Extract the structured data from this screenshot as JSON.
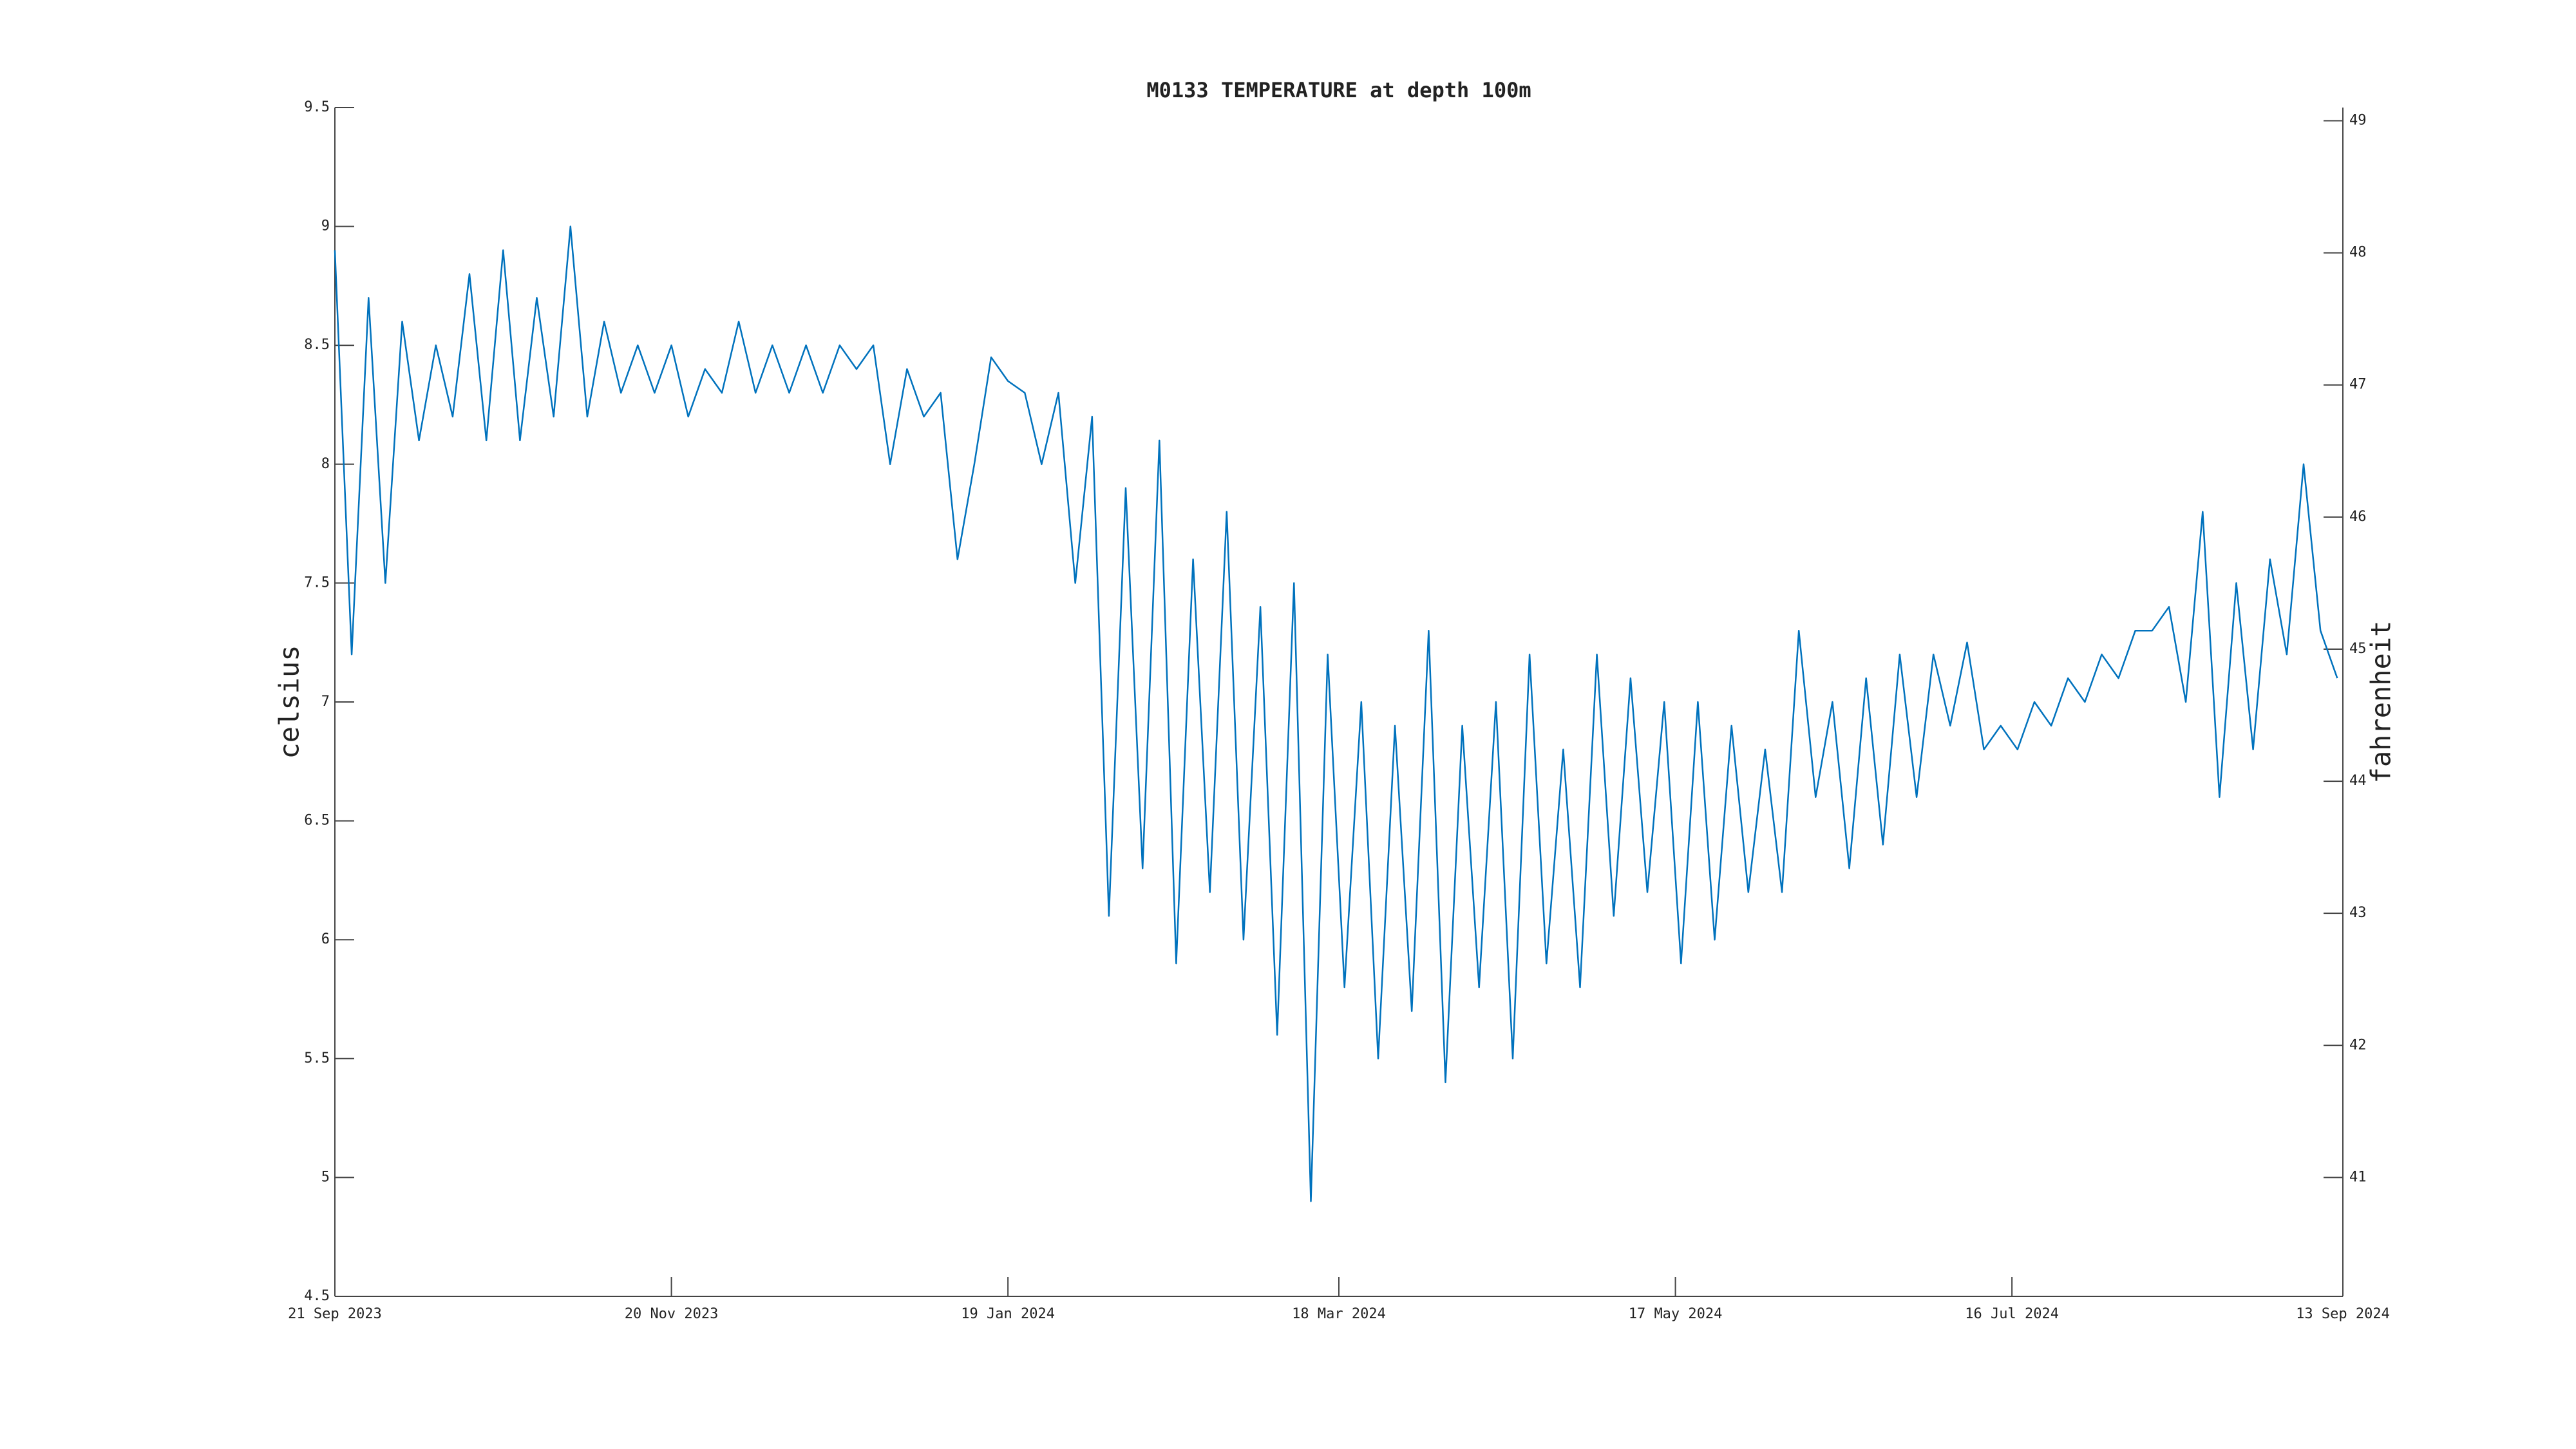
{
  "chart_data": {
    "type": "line",
    "title": "M0133 TEMPERATURE at depth 100m",
    "ylabel": "celsius",
    "y2label": "fahrenheit",
    "xlim": [
      "2023-09-21",
      "2024-09-13"
    ],
    "xticks": [
      {
        "value": "2023-09-21",
        "label": "21 Sep 2023"
      },
      {
        "value": "2023-11-20",
        "label": "20 Nov 2023"
      },
      {
        "value": "2024-01-19",
        "label": "19 Jan 2024"
      },
      {
        "value": "2024-03-18",
        "label": "18 Mar 2024"
      },
      {
        "value": "2024-05-17",
        "label": "17 May 2024"
      },
      {
        "value": "2024-07-16",
        "label": "16 Jul 2024"
      },
      {
        "value": "2024-09-13",
        "label": "13 Sep 2024"
      }
    ],
    "ylim": [
      4.5,
      9.5
    ],
    "yticks": [
      4.5,
      5,
      5.5,
      6,
      6.5,
      7,
      7.5,
      8,
      8.5,
      9,
      9.5
    ],
    "y2lim": [
      40.1,
      49.1
    ],
    "y2ticks": [
      41,
      42,
      43,
      44,
      45,
      46,
      47,
      48,
      49
    ],
    "grid": false,
    "x": [
      "2023-09-21",
      "2023-09-24",
      "2023-09-27",
      "2023-09-30",
      "2023-10-03",
      "2023-10-06",
      "2023-10-09",
      "2023-10-12",
      "2023-10-15",
      "2023-10-18",
      "2023-10-21",
      "2023-10-24",
      "2023-10-27",
      "2023-10-30",
      "2023-11-02",
      "2023-11-05",
      "2023-11-08",
      "2023-11-11",
      "2023-11-14",
      "2023-11-17",
      "2023-11-20",
      "2023-11-23",
      "2023-11-26",
      "2023-11-29",
      "2023-12-02",
      "2023-12-05",
      "2023-12-08",
      "2023-12-11",
      "2023-12-14",
      "2023-12-17",
      "2023-12-20",
      "2023-12-23",
      "2023-12-26",
      "2023-12-29",
      "2024-01-01",
      "2024-01-04",
      "2024-01-07",
      "2024-01-10",
      "2024-01-13",
      "2024-01-16",
      "2024-01-19",
      "2024-01-22",
      "2024-01-25",
      "2024-01-28",
      "2024-01-31",
      "2024-02-03",
      "2024-02-06",
      "2024-02-09",
      "2024-02-12",
      "2024-02-15",
      "2024-02-18",
      "2024-02-21",
      "2024-02-24",
      "2024-02-27",
      "2024-03-01",
      "2024-03-04",
      "2024-03-07",
      "2024-03-10",
      "2024-03-13",
      "2024-03-16",
      "2024-03-19",
      "2024-03-22",
      "2024-03-25",
      "2024-03-28",
      "2024-03-31",
      "2024-04-03",
      "2024-04-06",
      "2024-04-09",
      "2024-04-12",
      "2024-04-15",
      "2024-04-18",
      "2024-04-21",
      "2024-04-24",
      "2024-04-27",
      "2024-04-30",
      "2024-05-03",
      "2024-05-06",
      "2024-05-09",
      "2024-05-12",
      "2024-05-15",
      "2024-05-18",
      "2024-05-21",
      "2024-05-24",
      "2024-05-27",
      "2024-05-30",
      "2024-06-02",
      "2024-06-05",
      "2024-06-08",
      "2024-06-11",
      "2024-06-14",
      "2024-06-17",
      "2024-06-20",
      "2024-06-23",
      "2024-06-26",
      "2024-06-29",
      "2024-07-02",
      "2024-07-05",
      "2024-07-08",
      "2024-07-11",
      "2024-07-14",
      "2024-07-17",
      "2024-07-20",
      "2024-07-23",
      "2024-07-26",
      "2024-07-29",
      "2024-08-01",
      "2024-08-04",
      "2024-08-07",
      "2024-08-10",
      "2024-08-13",
      "2024-08-16",
      "2024-08-19",
      "2024-08-22",
      "2024-08-25",
      "2024-08-28",
      "2024-08-31",
      "2024-09-03",
      "2024-09-06",
      "2024-09-09",
      "2024-09-12"
    ],
    "series": [
      {
        "color": "#0072bd",
        "values": [
          8.9,
          7.2,
          8.7,
          7.5,
          8.6,
          8.1,
          8.5,
          8.2,
          8.8,
          8.1,
          8.9,
          8.1,
          8.7,
          8.2,
          9.0,
          8.2,
          8.6,
          8.3,
          8.5,
          8.3,
          8.5,
          8.2,
          8.4,
          8.3,
          8.6,
          8.3,
          8.5,
          8.3,
          8.5,
          8.3,
          8.5,
          8.4,
          8.5,
          8.0,
          8.4,
          8.2,
          8.3,
          7.6,
          8.0,
          8.45,
          8.35,
          8.3,
          8.0,
          8.3,
          7.5,
          8.2,
          6.1,
          7.9,
          6.3,
          8.1,
          5.9,
          7.6,
          6.2,
          7.8,
          6.0,
          7.4,
          5.6,
          7.5,
          4.9,
          7.2,
          5.8,
          7.0,
          5.5,
          6.9,
          5.7,
          7.3,
          5.4,
          6.9,
          5.8,
          7.0,
          5.5,
          7.2,
          5.9,
          6.8,
          5.8,
          7.2,
          6.1,
          7.1,
          6.2,
          7.0,
          5.9,
          7.0,
          6.0,
          6.9,
          6.2,
          6.8,
          6.2,
          7.3,
          6.6,
          7.0,
          6.3,
          7.1,
          6.4,
          7.2,
          6.6,
          7.2,
          6.9,
          7.25,
          6.8,
          6.9,
          6.8,
          7.0,
          6.9,
          7.1,
          7.0,
          7.2,
          7.1,
          7.3,
          7.3,
          7.4,
          7.0,
          7.8,
          6.6,
          7.5,
          6.8,
          7.6,
          7.2,
          8.0,
          7.3,
          7.1
        ]
      }
    ]
  }
}
